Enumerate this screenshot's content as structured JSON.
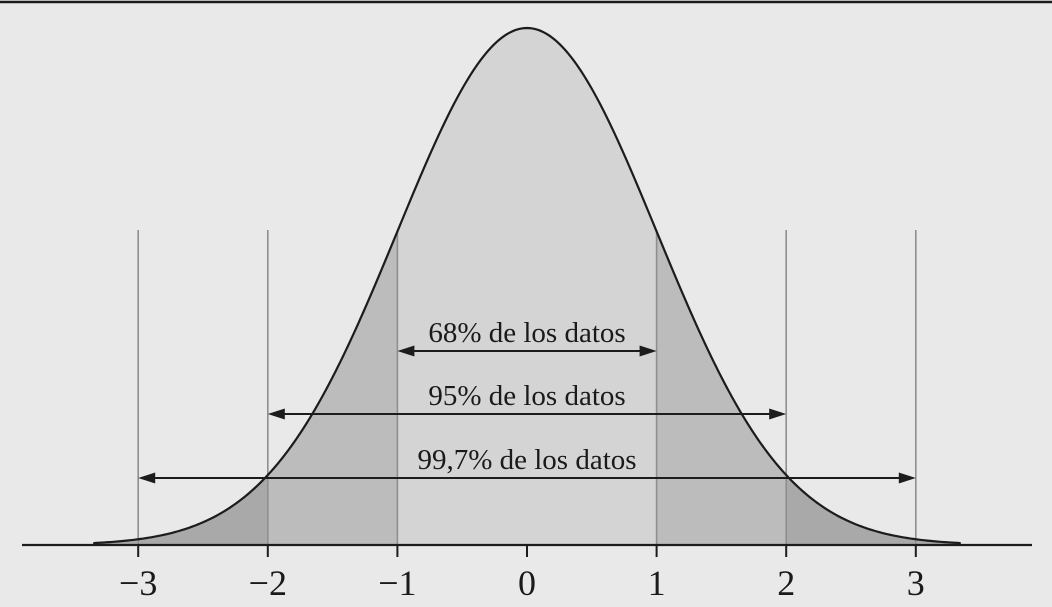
{
  "colors": {
    "background": "#e9e9e9",
    "area_light": "#d4d4d4",
    "area_mid": "#bcbcbc",
    "area_dark": "#a9a9a9",
    "curve_stroke": "#1c1c1c",
    "axis_stroke": "#1c1c1c",
    "reference_line": "#8f8f8f",
    "text": "#1a1a1a",
    "top_rule": "#1c1c1c"
  },
  "chart_data": {
    "type": "area",
    "subtype": "normal_distribution_density",
    "title": "",
    "xlabel": "",
    "ylabel": "",
    "mean": 0,
    "sd": 1,
    "x_range_sigma": [
      -3.34,
      3.34
    ],
    "x_ticks": [
      "−3",
      "−2",
      "−1",
      "0",
      "1",
      "2",
      "3"
    ],
    "x_tick_values": [
      -3,
      -2,
      -1,
      0,
      1,
      2,
      3
    ],
    "reference_lines_sd": [
      -3,
      -2,
      -1,
      1,
      2,
      3
    ],
    "grid": false,
    "legend": null,
    "shaded_bands": [
      {
        "from_sd": -1,
        "to_sd": 1,
        "coverage": "68%",
        "fill": "#d4d4d4"
      },
      {
        "from_sd": -2,
        "to_sd": 2,
        "coverage": "95%",
        "fill": "#bcbcbc"
      },
      {
        "from_sd": -3.34,
        "to_sd": 3.34,
        "coverage": "99,7%",
        "fill": "#a9a9a9"
      }
    ],
    "annotations": [
      {
        "label": "68% de los datos",
        "from_sd": -1,
        "to_sd": 1
      },
      {
        "label": "95% de los datos",
        "from_sd": -2,
        "to_sd": 2
      },
      {
        "label": "99,7% de los datos",
        "from_sd": -3,
        "to_sd": 3
      }
    ]
  }
}
